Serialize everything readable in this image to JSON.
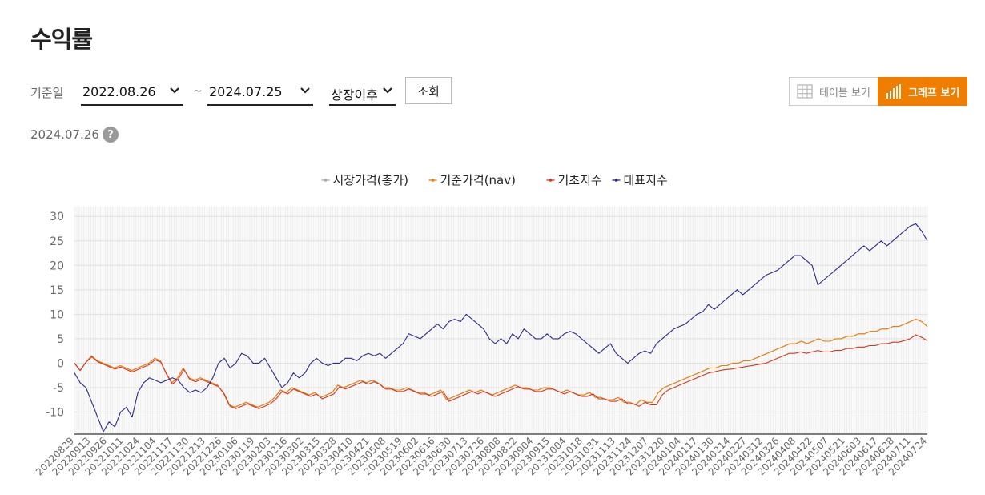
{
  "page": {
    "title": "수익률"
  },
  "filters": {
    "label": "기준일",
    "start_date": "2022.08.26",
    "separator": "~",
    "end_date": "2024.07.25",
    "period": "상장이후",
    "query_button": "조회"
  },
  "view_toggle": {
    "table_label": "테이블 보기",
    "graph_label": "그래프 보기",
    "active": "graph",
    "accent": "#ee7d00"
  },
  "as_of_date": "2024.07.26",
  "help_icon": "question-icon",
  "chart_data": {
    "type": "line",
    "title": "",
    "xlabel": "",
    "ylabel": "",
    "ylim": [
      -14.5,
      32
    ],
    "yticks": [
      -10,
      -5,
      0,
      5,
      10,
      15,
      20,
      25,
      30
    ],
    "grid": true,
    "legend": "top-center",
    "x_ticks": [
      "20220829",
      "20220913",
      "20220926",
      "20221011",
      "20221024",
      "20221104",
      "20221117",
      "20221130",
      "20221213",
      "20221226",
      "20230106",
      "20230119",
      "20230203",
      "20230216",
      "20230302",
      "20230315",
      "20230328",
      "20230410",
      "20230421",
      "20230508",
      "20230519",
      "20230602",
      "20230616",
      "20230630",
      "20230713",
      "20230726",
      "20230808",
      "20230822",
      "20230904",
      "20230915",
      "20231004",
      "20231018",
      "20231031",
      "20231113",
      "20231124",
      "20231207",
      "20231220",
      "20240104",
      "20240117",
      "20240130",
      "20240214",
      "20240227",
      "20240312",
      "20240326",
      "20240408",
      "20240422",
      "20240507",
      "20240521",
      "20240603",
      "20240617",
      "20240628",
      "20240711",
      "20240724"
    ],
    "series": [
      {
        "name": "시장가격(총가)",
        "color": "#aaaaaa",
        "values": [
          0,
          -1.5,
          0.2,
          1.5,
          0.5,
          0,
          -0.5,
          -1,
          -0.5,
          -1,
          -1.5,
          -1,
          -0.5,
          0,
          1,
          0.5,
          -2,
          -4,
          -3,
          -1,
          -3,
          -3.5,
          -3,
          -3.5,
          -4,
          -4.5,
          -6,
          -8.5,
          -9,
          -8.5,
          -8,
          -8.5,
          -9,
          -8.5,
          -8,
          -7,
          -5.5,
          -6,
          -5,
          -5.5,
          -6,
          -6.5,
          -6,
          -7,
          -6.5,
          -6,
          -4.5,
          -5,
          -4.5,
          -4,
          -3.5,
          -4,
          -3.5,
          -4,
          -5,
          -5,
          -5.5,
          -5.5,
          -5,
          -5.5,
          -6,
          -6,
          -6.5,
          -6,
          -5.5,
          -7.5,
          -7,
          -6.5,
          -6,
          -5.5,
          -6,
          -5.5,
          -6,
          -6.5,
          -6,
          -5.5,
          -5,
          -4.5,
          -5,
          -5,
          -5.5,
          -5.5,
          -5,
          -5,
          -5.5,
          -6,
          -5.5,
          -6,
          -6.5,
          -6.5,
          -6,
          -7,
          -7,
          -7.5,
          -7.5,
          -7,
          -8,
          -8,
          -8.5,
          -7.5,
          -8,
          -8,
          -6,
          -5,
          -4.5,
          -4,
          -3.5,
          -3,
          -2.5,
          -2,
          -1.5,
          -1,
          -1,
          -0.5,
          -0.5,
          0,
          0,
          0.5,
          0.5,
          1,
          1.5,
          2,
          2.5,
          3,
          3.5,
          4,
          4,
          4.5,
          4,
          4.5,
          5,
          4.5,
          4.5,
          5,
          5,
          5.5,
          5.5,
          6,
          6,
          6.5,
          6.5,
          7,
          7,
          7.5,
          7.5,
          8,
          8.5,
          9,
          8.5,
          7.5
        ]
      },
      {
        "name": "기준가격(nav)",
        "color": "#ee7d00",
        "values": [
          0,
          -1.5,
          0.2,
          1.5,
          0.5,
          0,
          -0.5,
          -1,
          -0.5,
          -1,
          -1.5,
          -1,
          -0.5,
          0,
          1,
          0.5,
          -2,
          -4,
          -3,
          -1,
          -3,
          -3.5,
          -3,
          -3.5,
          -4,
          -4.5,
          -6,
          -8.5,
          -9,
          -8.5,
          -8,
          -8.5,
          -9,
          -8.5,
          -8,
          -7,
          -5.5,
          -6,
          -5,
          -5.5,
          -6,
          -6.5,
          -6,
          -7,
          -6.5,
          -6,
          -4.5,
          -5,
          -4.5,
          -4,
          -3.5,
          -4,
          -3.5,
          -4,
          -5,
          -5,
          -5.5,
          -5.5,
          -5,
          -5.5,
          -6,
          -6,
          -6.5,
          -6,
          -5.5,
          -7.5,
          -7,
          -6.5,
          -6,
          -5.5,
          -6,
          -5.5,
          -6,
          -6.5,
          -6,
          -5.5,
          -5,
          -4.5,
          -5,
          -5,
          -5.5,
          -5.5,
          -5,
          -5,
          -5.5,
          -6,
          -5.5,
          -6,
          -6.5,
          -6.5,
          -6,
          -7,
          -7,
          -7.5,
          -7.5,
          -7,
          -8,
          -8,
          -8.5,
          -7.5,
          -8,
          -8,
          -6,
          -5,
          -4.5,
          -4,
          -3.5,
          -3,
          -2.5,
          -2,
          -1.5,
          -1,
          -1,
          -0.5,
          -0.5,
          0,
          0,
          0.5,
          0.5,
          1,
          1.5,
          2,
          2.5,
          3,
          3.5,
          4,
          4,
          4.5,
          4,
          4.5,
          5,
          4.5,
          4.5,
          5,
          5,
          5.5,
          5.5,
          6,
          6,
          6.5,
          6.5,
          7,
          7,
          7.5,
          7.5,
          8,
          8.5,
          9,
          8.5,
          7.5
        ]
      },
      {
        "name": "기초지수",
        "color": "#d8341c",
        "values": [
          0,
          -1.5,
          0.2,
          1.3,
          0.3,
          -0.2,
          -0.7,
          -1.2,
          -0.8,
          -1.3,
          -1.8,
          -1.3,
          -0.8,
          -0.3,
          0.7,
          0.2,
          -2.3,
          -4.3,
          -3.3,
          -1.3,
          -3.3,
          -3.8,
          -3.3,
          -3.8,
          -4.3,
          -4.8,
          -6.3,
          -8.8,
          -9.3,
          -8.8,
          -8.3,
          -8.8,
          -9.3,
          -8.8,
          -8.3,
          -7.3,
          -5.8,
          -6.3,
          -5.3,
          -5.8,
          -6.3,
          -6.8,
          -6.3,
          -7.3,
          -6.8,
          -6.3,
          -4.8,
          -5.3,
          -4.8,
          -4.3,
          -3.8,
          -4.3,
          -3.8,
          -4.3,
          -5.3,
          -5.3,
          -5.8,
          -5.8,
          -5.3,
          -5.8,
          -6.3,
          -6.3,
          -6.8,
          -6.3,
          -5.8,
          -7.8,
          -7.3,
          -6.8,
          -6.3,
          -5.8,
          -6.3,
          -5.8,
          -6.3,
          -6.8,
          -6.3,
          -5.8,
          -5.3,
          -4.8,
          -5.3,
          -5.3,
          -5.8,
          -5.8,
          -5.3,
          -5.3,
          -5.8,
          -6.3,
          -5.8,
          -6.3,
          -6.8,
          -6.8,
          -6.3,
          -7.3,
          -7.3,
          -7.8,
          -7.8,
          -7.3,
          -8.3,
          -8.3,
          -8.8,
          -8,
          -8.5,
          -8.5,
          -6.5,
          -5.5,
          -5,
          -4.5,
          -4,
          -3.5,
          -3,
          -2.5,
          -2,
          -1.8,
          -1.5,
          -1.3,
          -1.2,
          -1,
          -0.8,
          -0.6,
          -0.4,
          -0.2,
          0,
          0.5,
          1,
          1.5,
          2,
          2,
          2.3,
          2,
          2.3,
          2.6,
          2.3,
          2.3,
          2.6,
          2.6,
          3,
          3,
          3.3,
          3.3,
          3.6,
          3.6,
          4,
          4,
          4.3,
          4.3,
          4.6,
          5,
          5.8,
          5.3,
          4.6
        ]
      },
      {
        "name": "대표지수",
        "color": "#2b2b8a",
        "values": [
          -2,
          -4,
          -5,
          -8,
          -11,
          -14,
          -12,
          -13,
          -10,
          -9,
          -11,
          -6,
          -4,
          -3,
          -3.5,
          -4,
          -3.5,
          -3,
          -3.5,
          -5,
          -6,
          -5.5,
          -6,
          -5,
          -3,
          0,
          1,
          -1,
          0,
          2,
          1.5,
          0,
          0,
          1,
          -1,
          -3,
          -5,
          -4,
          -2,
          -3,
          -2,
          0,
          1,
          0,
          -0.5,
          0,
          0,
          1,
          1,
          0.5,
          1.5,
          2,
          1.5,
          2,
          1,
          2,
          3,
          4,
          6,
          5.5,
          5,
          6,
          7,
          8,
          7,
          8.5,
          9,
          8.5,
          10,
          9,
          8,
          7,
          5,
          4,
          5,
          4,
          6,
          5,
          7,
          6,
          5,
          5,
          6,
          5,
          5,
          6,
          6.5,
          6,
          5,
          4,
          3,
          2,
          3,
          4,
          2,
          1,
          0,
          1,
          2,
          2.5,
          2,
          4,
          5,
          6,
          7,
          7.5,
          8,
          9,
          10,
          10.5,
          12,
          11,
          12,
          13,
          14,
          15,
          14,
          15,
          16,
          17,
          18,
          18.5,
          19,
          20,
          21,
          22,
          22,
          21,
          20,
          16,
          17,
          18,
          19,
          20,
          21,
          22,
          23,
          24,
          23,
          24,
          25,
          24,
          25,
          26,
          27,
          28,
          28.5,
          27,
          25
        ]
      }
    ]
  }
}
